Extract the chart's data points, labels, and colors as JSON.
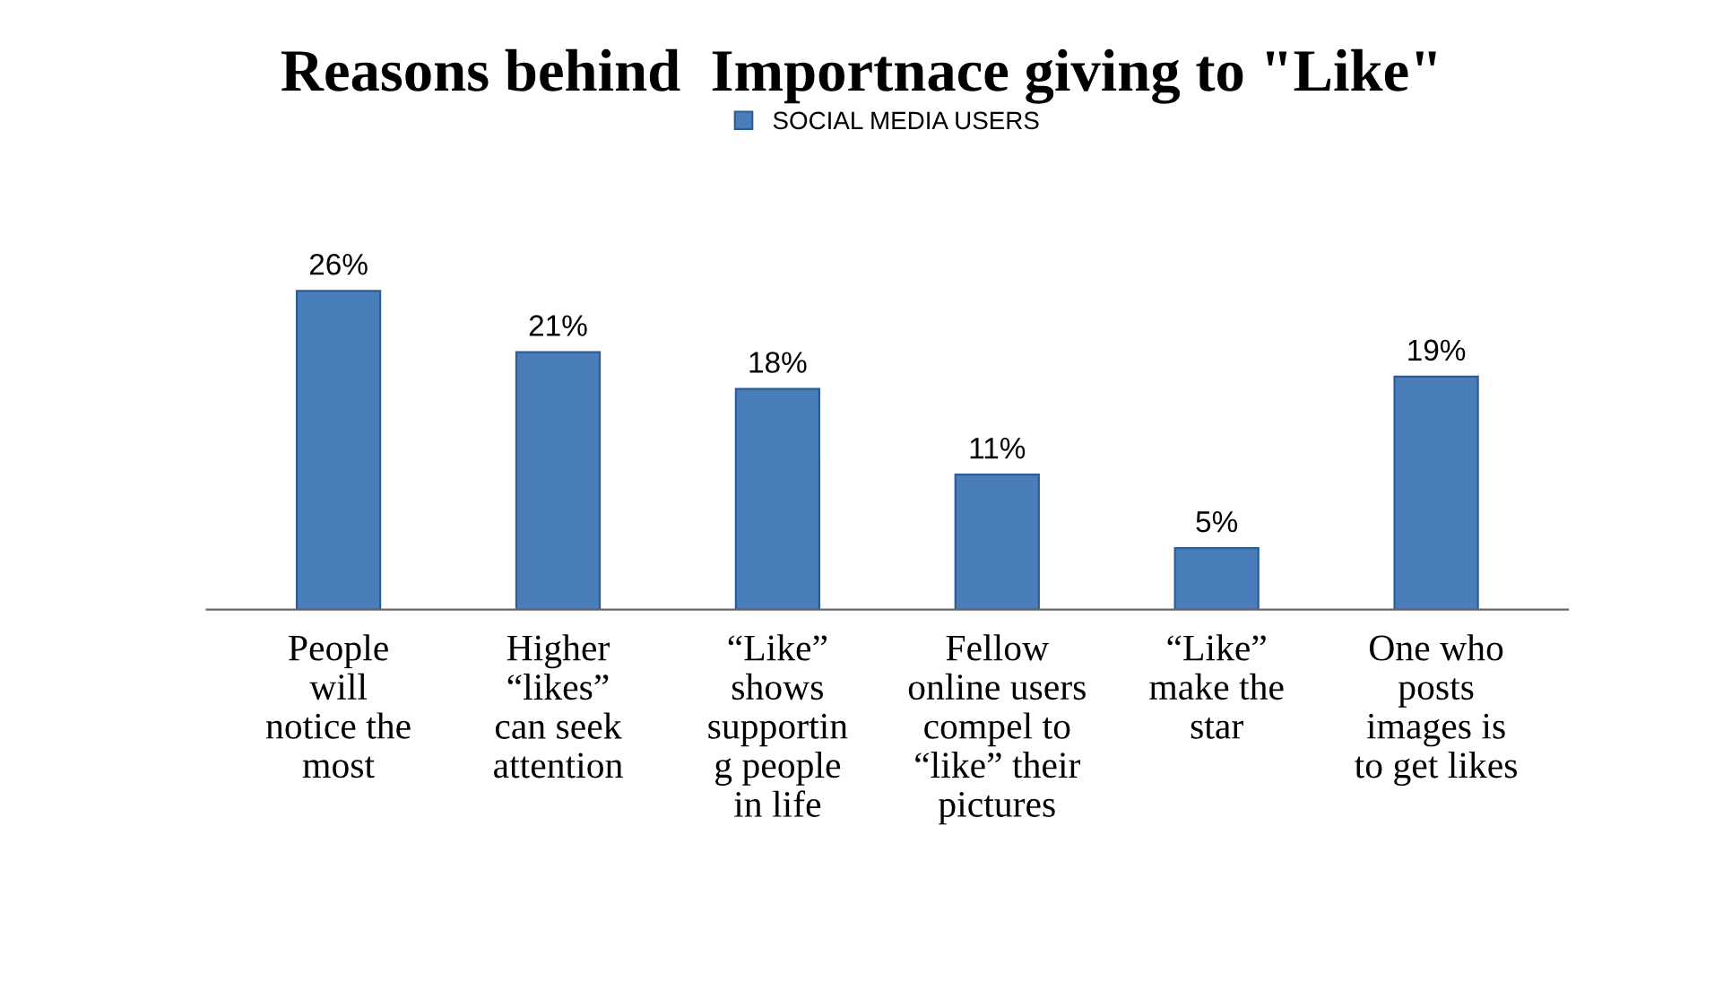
{
  "chart_data": {
    "type": "bar",
    "title": "Reasons behind  Importnace giving to \"Like\"",
    "categories": [
      "People\nwill\nnotice the\nmost",
      "Higher\n“likes”\ncan seek\nattention",
      "“Like”\nshows\nsupportin\ng people\nin life",
      "Fellow\nonline users\ncompel to\n“like” their\npictures",
      "“Like”\nmake the\nstar",
      "One who\nposts\nimages is\nto get likes"
    ],
    "series": [
      {
        "name": "SOCIAL MEDIA USERS",
        "color": "#4a7ebb",
        "values": [
          26,
          21,
          18,
          11,
          5,
          19
        ],
        "value_labels": [
          "26%",
          "21%",
          "18%",
          "11%",
          "5%",
          "19%"
        ]
      }
    ],
    "legend": "top",
    "grid": false
  }
}
